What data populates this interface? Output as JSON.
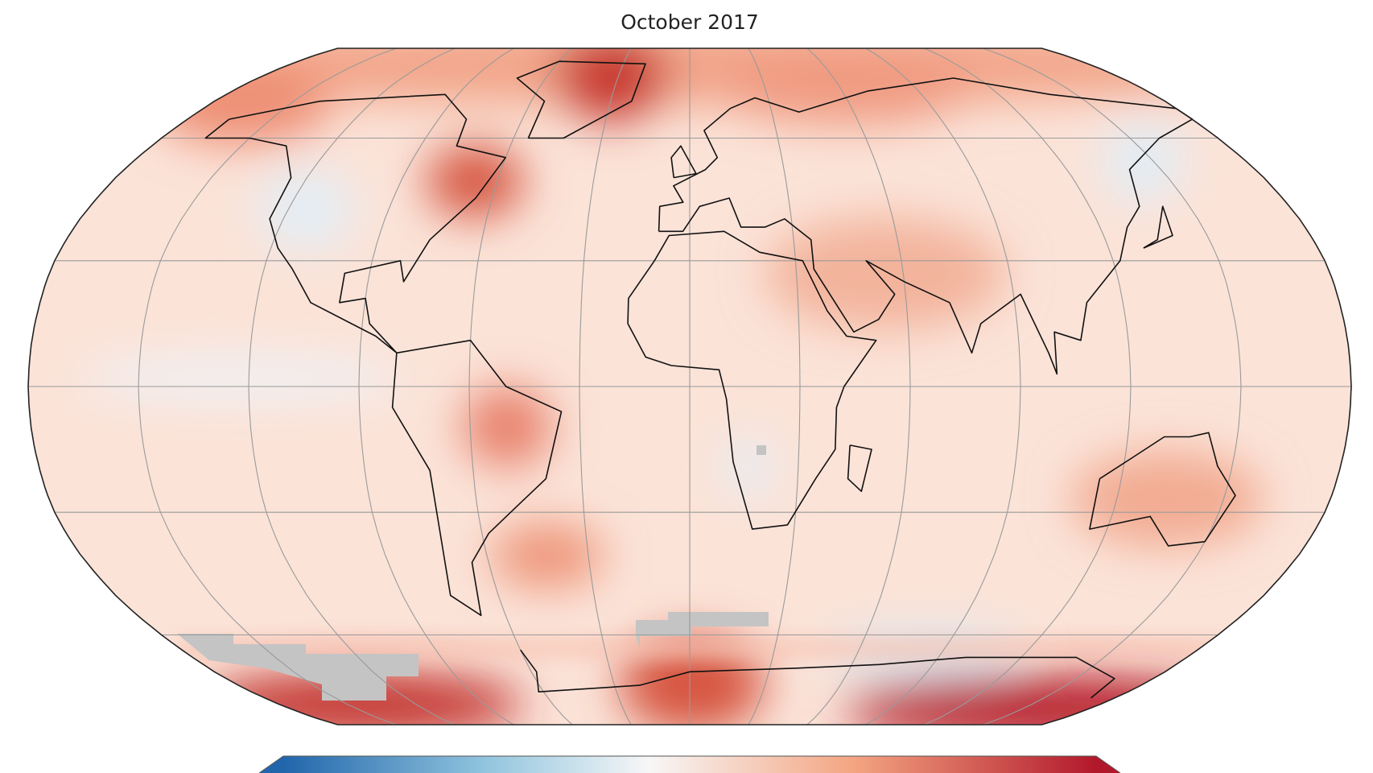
{
  "map": {
    "subtitle": "October 2017"
  }
}
